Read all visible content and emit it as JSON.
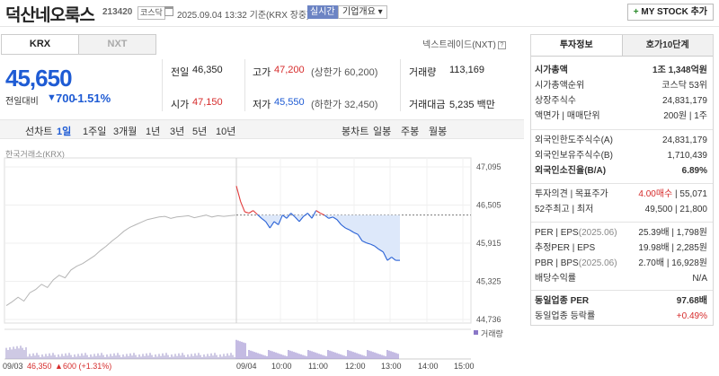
{
  "header": {
    "company_name": "덕산네오룩스",
    "stock_code": "213420",
    "market_badge": "코스닥",
    "calendar_icon": "calendar-icon",
    "datetime": "2025.09.04 13:32",
    "datetime_suffix": "기준(KRX 장중)",
    "realtime_badge": "실시간",
    "company_info_dropdown": "기업개요",
    "my_stock_button": "MY STOCK 추가"
  },
  "exchange_tabs": [
    "KRX",
    "NXT"
  ],
  "nextrade_link": "넥스트레이드(NXT)",
  "price": {
    "current": "45,650",
    "change_label": "전일대비",
    "change_arrow": "▼",
    "change_value": "700",
    "change_rate": "-1.51%"
  },
  "quote": {
    "prev_close_label": "전일",
    "prev_close": "46,350",
    "open_label": "시가",
    "open": "47,150",
    "high_label": "고가",
    "high": "47,200",
    "upper_limit": "(상한가 60,200)",
    "low_label": "저가",
    "low": "45,550",
    "lower_limit": "(하한가 32,450)",
    "volume_label": "거래량",
    "volume": "113,169",
    "trade_value_label": "거래대금",
    "trade_value": "5,235 백만"
  },
  "period_bar": {
    "left_label": "선차트",
    "periods": [
      "1일",
      "1주일",
      "3개월",
      "1년",
      "3년",
      "5년",
      "10년"
    ],
    "selected": "1일",
    "right_label": "봉차트",
    "candle_periods": [
      "일봉",
      "주봉",
      "월봉"
    ]
  },
  "chart_data": {
    "type": "line",
    "title": "",
    "source_label": "한국거래소(KRX)",
    "y_ticks": [
      "47,095",
      "46,505",
      "45,915",
      "45,325",
      "44,736"
    ],
    "ylim": [
      44736,
      47095
    ],
    "reference_price": 46350,
    "prev_session_label": "09/03",
    "prev_close_info": "46,350",
    "prev_change_arrow": "▲",
    "prev_change": "600 (+1.31%)",
    "x_ticks": [
      "09/04",
      "10:00",
      "11:00",
      "12:00",
      "13:00",
      "14:00",
      "15:00"
    ],
    "volume_legend": "거래량",
    "prev_day_series": [
      44950,
      45010,
      45080,
      45020,
      45150,
      45200,
      45280,
      45230,
      45350,
      45420,
      45380,
      45500,
      45560,
      45600,
      45660,
      45720,
      45800,
      45870,
      45950,
      46020,
      46100,
      46160,
      46200,
      46240,
      46280,
      46300,
      46320,
      46330,
      46300,
      46320,
      46330,
      46340,
      46310,
      46330,
      46350,
      46320,
      46340,
      46330,
      46340,
      46350
    ],
    "today_series": [
      46800,
      46560,
      46400,
      46380,
      46420,
      46360,
      46300,
      46250,
      46150,
      46250,
      46200,
      46350,
      46300,
      46380,
      46320,
      46250,
      46330,
      46380,
      46300,
      46420,
      46380,
      46350,
      46300,
      46320,
      46280,
      46200,
      46150,
      46120,
      46080,
      46050,
      45950,
      45920,
      45900,
      45870,
      45820,
      45780,
      45650,
      45700,
      45650,
      45650
    ],
    "colors": {
      "up": "#e23b3b",
      "down": "#2a62d6",
      "prev": "#b5b5b5",
      "fill": "#dde8fa"
    }
  },
  "invest_panel": {
    "tabs": [
      "투자정보",
      "호가10단계"
    ],
    "market_cap_label": "시가총액",
    "market_cap": "1조 1,348억원",
    "market_cap_rank_label": "시가총액순위",
    "market_cap_rank": "코스닥 53위",
    "listed_shares_label": "상장주식수",
    "listed_shares": "24,831,179",
    "face_value_label": "액면가 | 매매단위",
    "face_value": "200원 | 1주",
    "foreign_limit_label": "외국인한도주식수(A)",
    "foreign_limit": "24,831,179",
    "foreign_hold_label": "외국인보유주식수(B)",
    "foreign_hold": "1,710,439",
    "foreign_ratio_label": "외국인소진율(B/A)",
    "foreign_ratio": "6.89%",
    "opinion_label": "투자의견 | 목표주가",
    "opinion": "4.00매수",
    "target_price": "55,071",
    "week52_label": "52주최고 | 최저",
    "week52": "49,500 | 21,800",
    "per_label": "PER | EPS",
    "per_date": "(2025.06)",
    "per_value": "25.39배 | 1,798원",
    "est_per_label": "추정PER | EPS",
    "est_per_value": "19.98배 | 2,285원",
    "pbr_label": "PBR | BPS",
    "pbr_date": "(2025.06)",
    "pbr_value": "2.70배 | 16,928원",
    "dividend_label": "배당수익률",
    "dividend_value": "N/A",
    "sector_per_label": "동일업종 PER",
    "sector_per_value": "97.68배",
    "sector_change_label": "동일업종 등락률",
    "sector_change_value": "+0.49%"
  }
}
